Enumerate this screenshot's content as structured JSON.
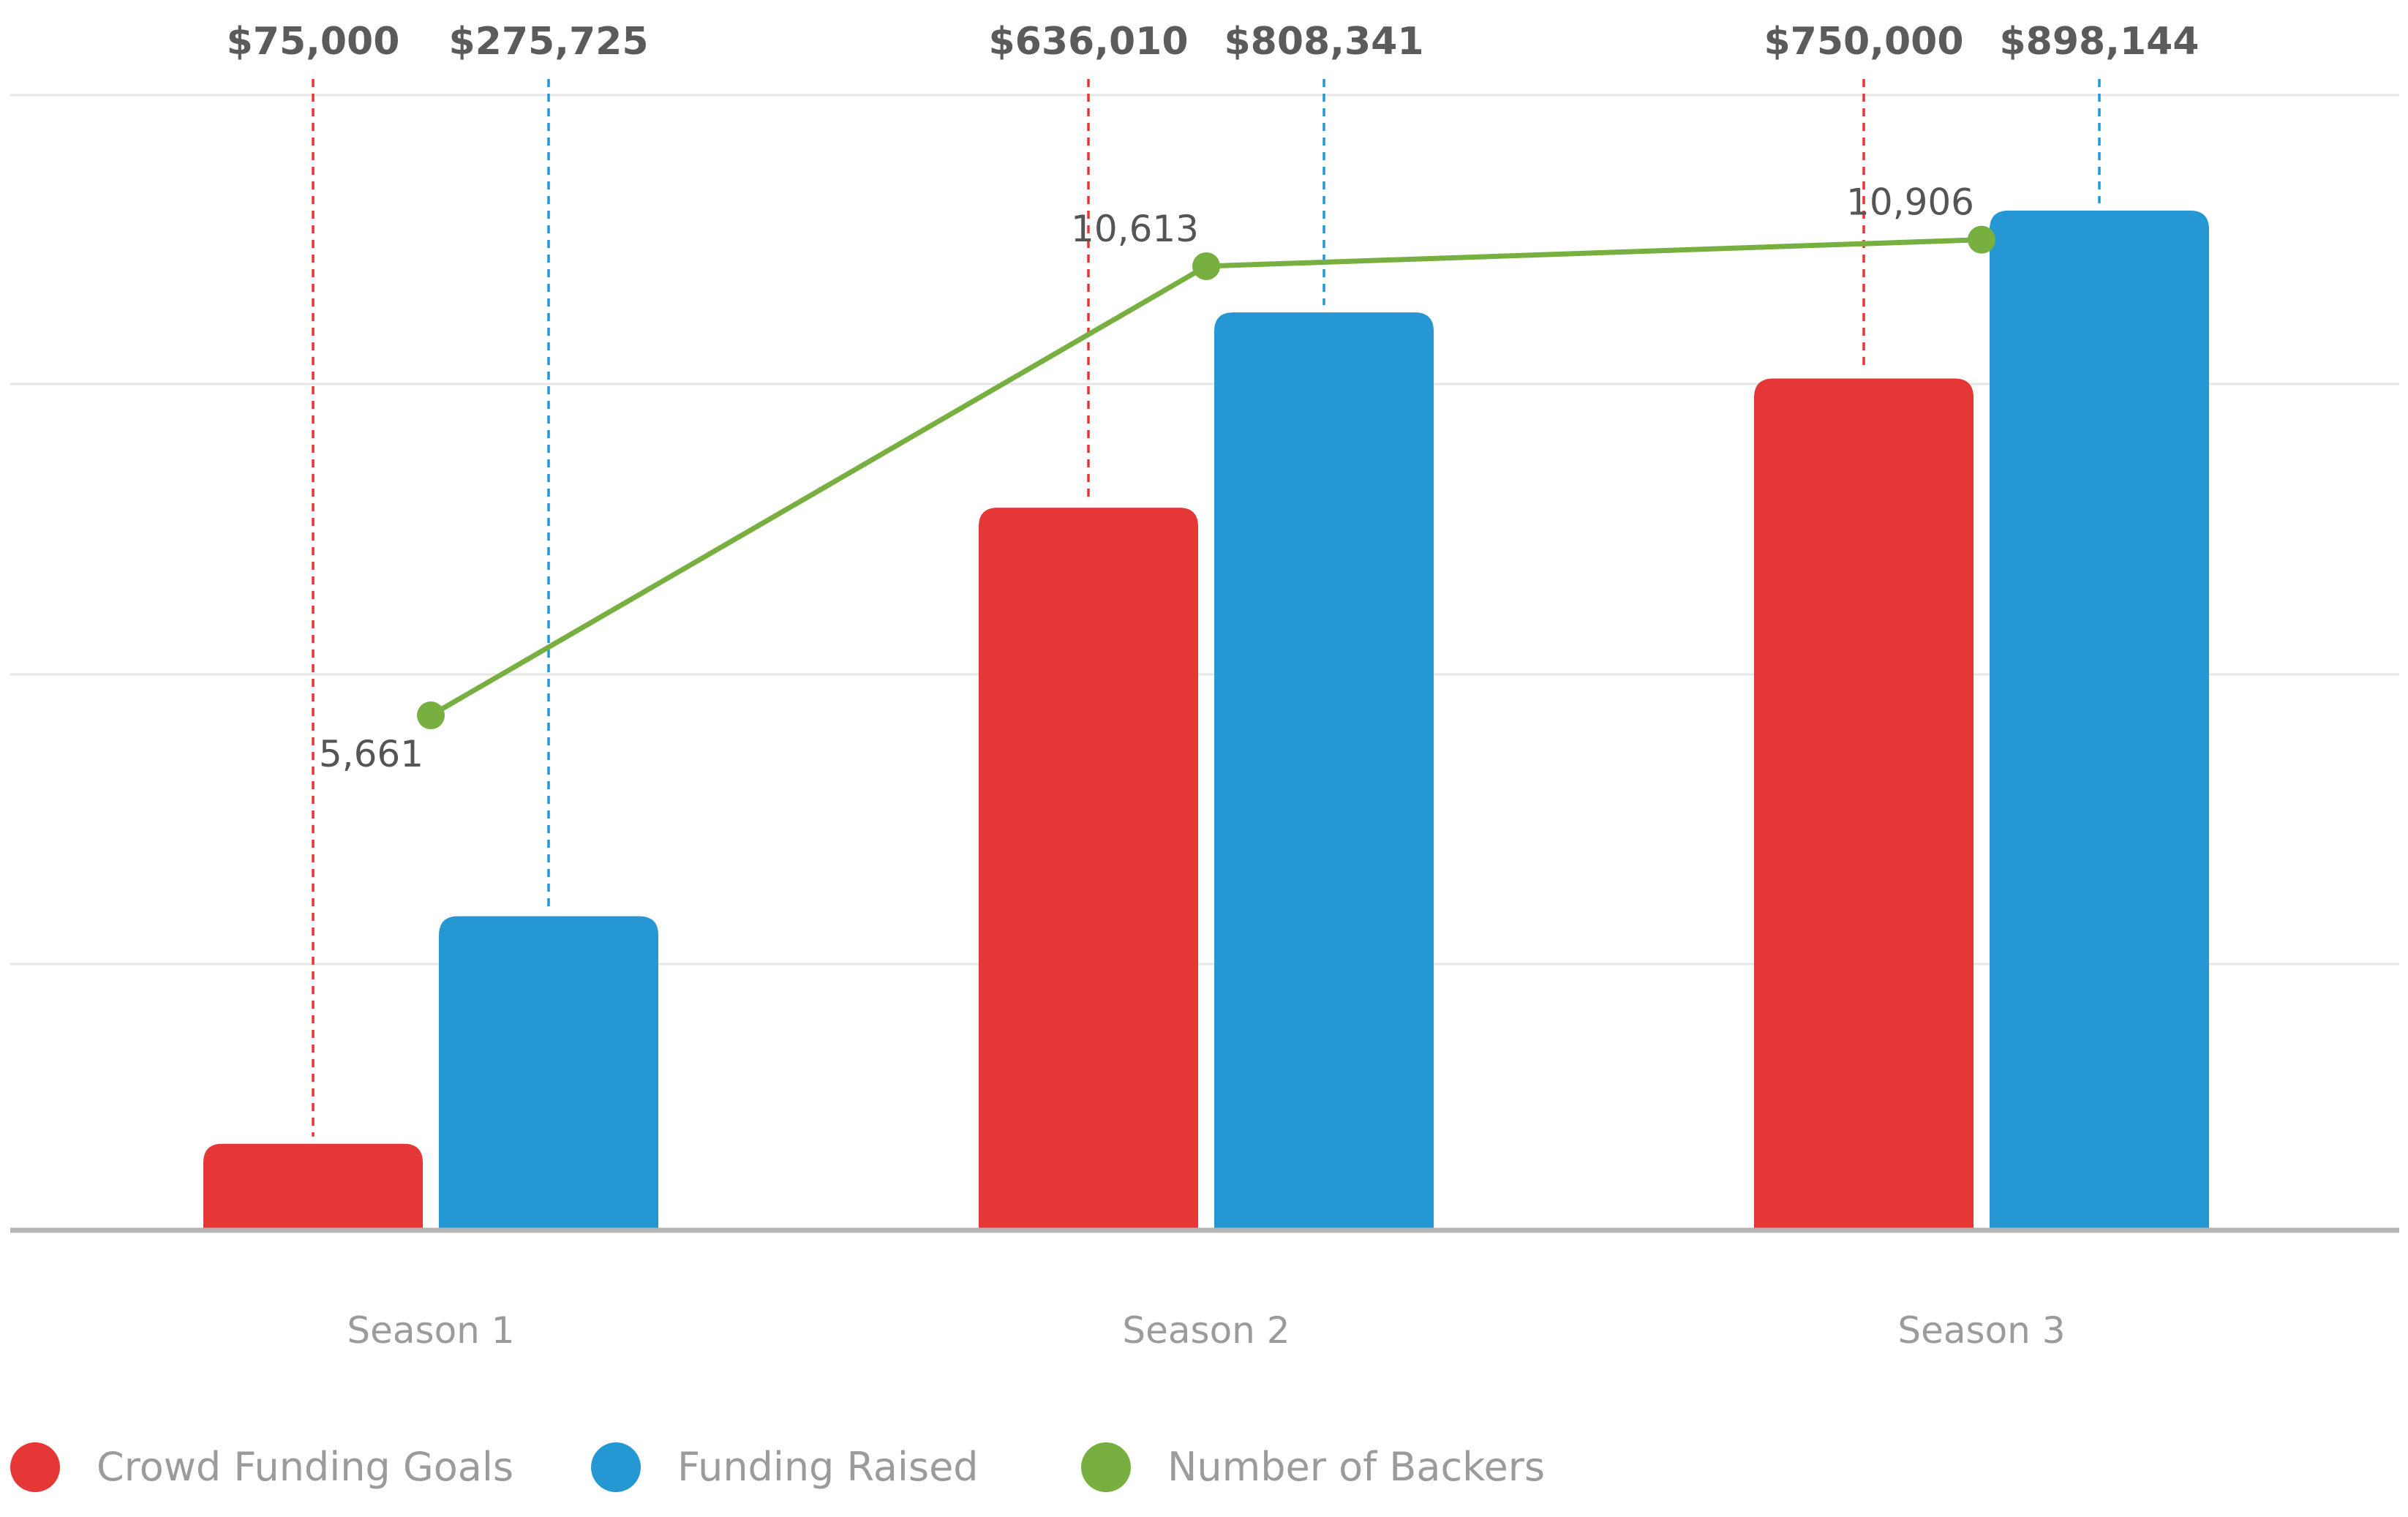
{
  "chart_data": {
    "type": "bar",
    "categories": [
      "Season 1",
      "Season 2",
      "Season 3"
    ],
    "series": [
      {
        "name": "Crowd Funding Goals",
        "color": "#e63737",
        "values": [
          75000,
          636010,
          750000
        ],
        "labels": [
          "$75,000",
          "$636,010",
          "$750,000"
        ]
      },
      {
        "name": "Funding Raised",
        "color": "#2598d4",
        "values": [
          275725,
          808341,
          898144
        ],
        "labels": [
          "$275,725",
          "$808,341",
          "$898,144"
        ]
      }
    ],
    "line_series": {
      "name": "Number of Backers",
      "type": "line",
      "color": "#77b040",
      "values": [
        5661,
        10613,
        10906
      ],
      "labels": [
        "5,661",
        "10,613",
        "10,906"
      ],
      "ylim": [
        0,
        12500
      ]
    },
    "ylim": [
      0,
      1000000
    ],
    "grid": true,
    "legend": "bottom-left"
  }
}
